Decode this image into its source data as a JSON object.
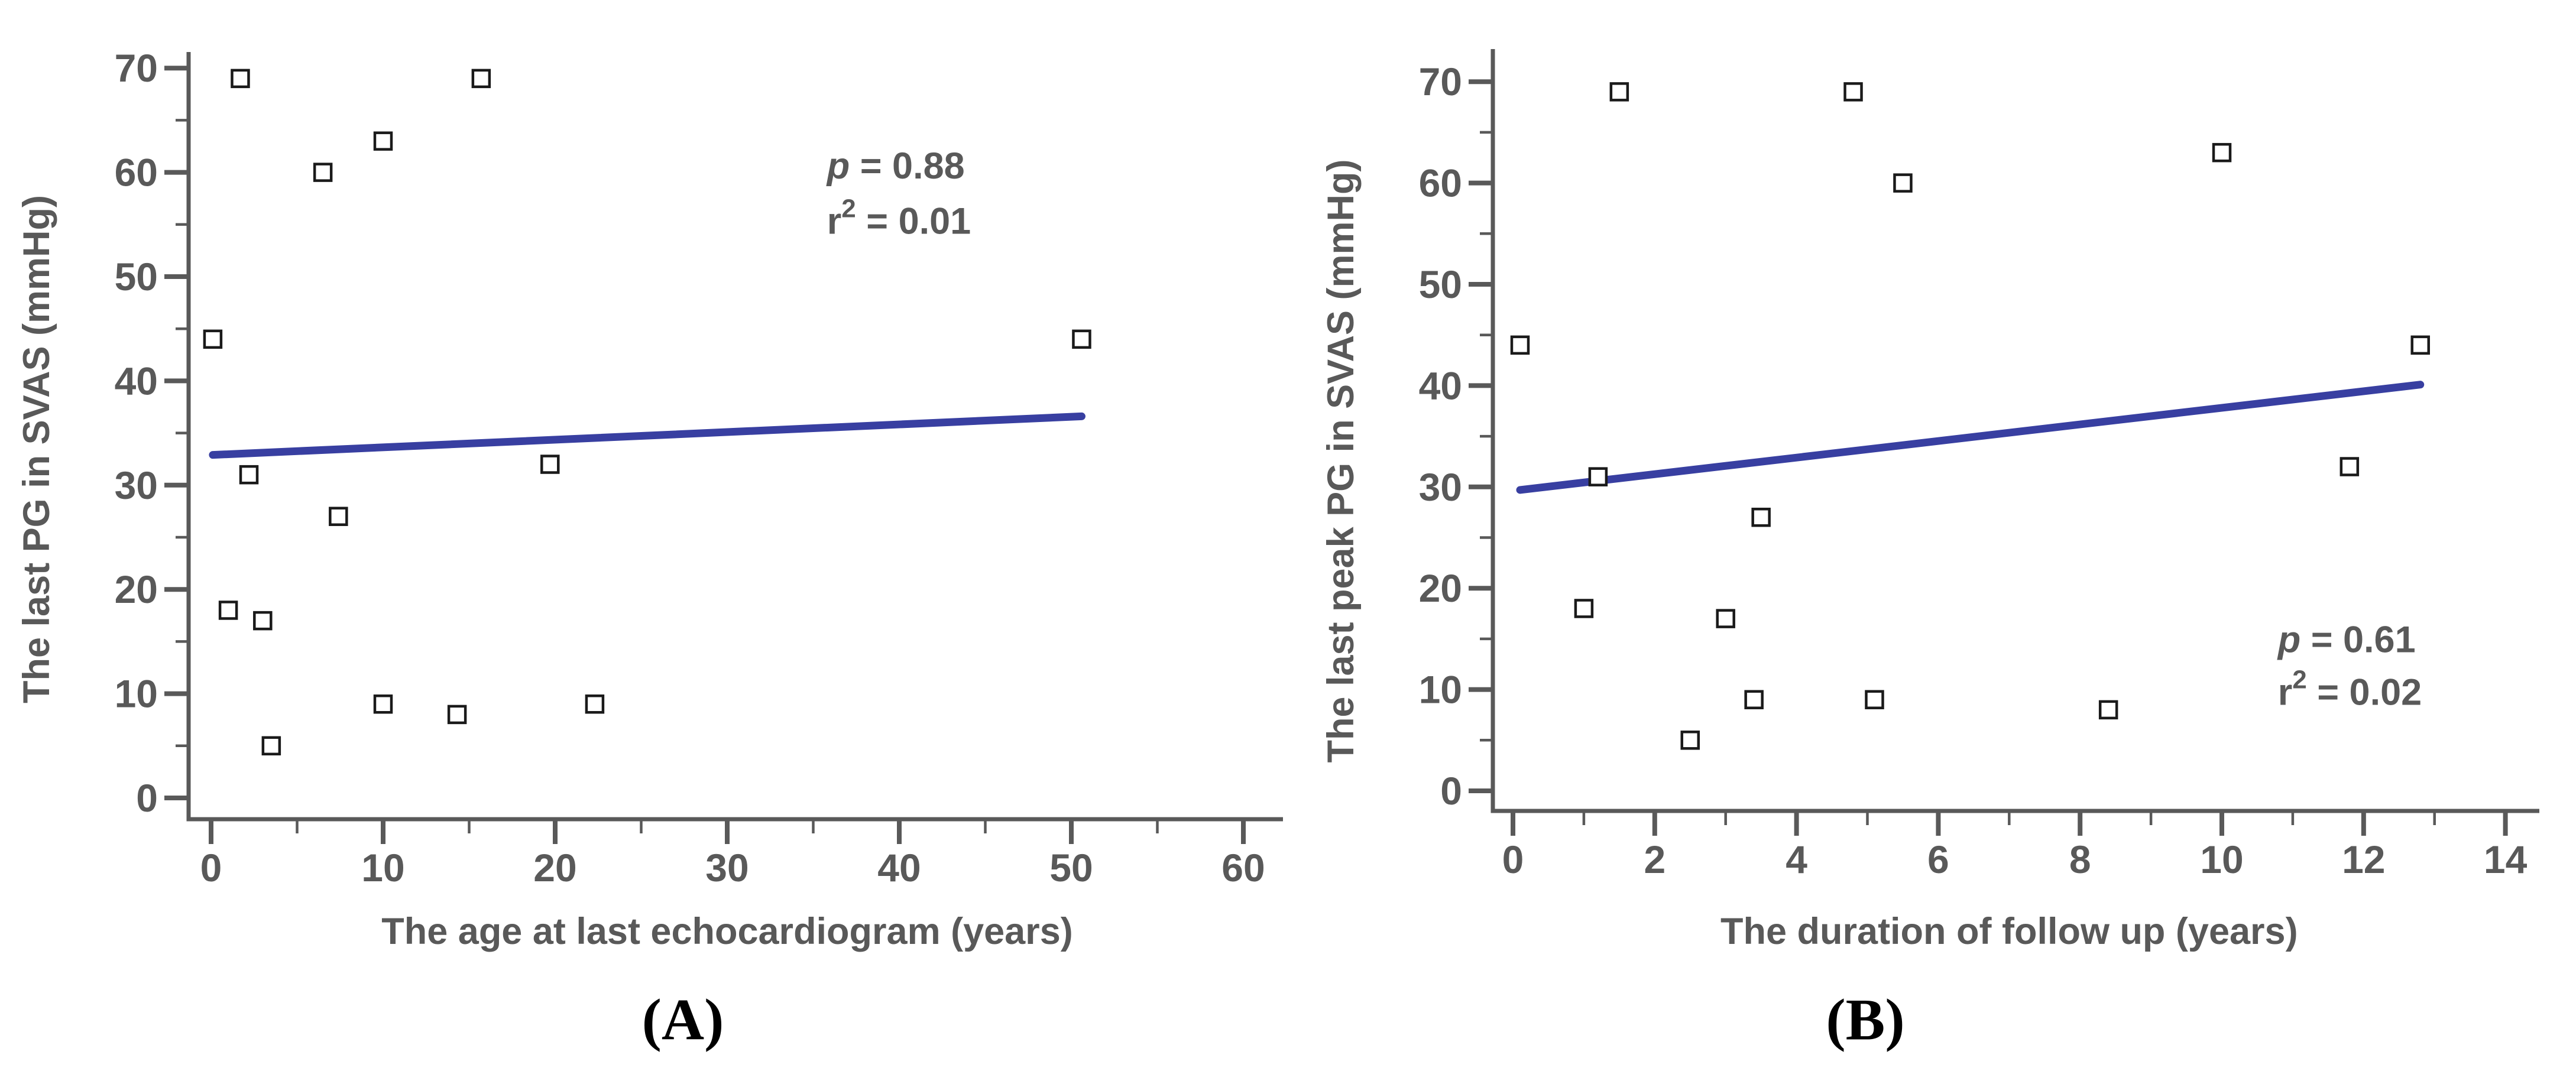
{
  "style": {
    "background": "#ffffff",
    "axis_color": "#595959",
    "label_color": "#595959",
    "marker_stroke": "#1a1a1a",
    "marker_fill": "#ffffff",
    "trend_color": "#383fa1",
    "caption_color": "#000000"
  },
  "chart_data": [
    {
      "id": "A",
      "type": "scatter",
      "caption": "(A)",
      "xlabel": "The age at last echocardiogram (years)",
      "ylabel": "The last PG in SVAS (mmHg)",
      "xlim": [
        0,
        60
      ],
      "ylim": [
        0,
        70
      ],
      "grid": false,
      "legend": null,
      "marker": "open-square",
      "x_major_ticks": [
        0,
        10,
        20,
        30,
        40,
        50,
        60
      ],
      "x_minor_ticks": [
        5,
        15,
        25,
        35,
        45,
        55
      ],
      "y_major_ticks": [
        0,
        10,
        20,
        30,
        40,
        50,
        60,
        70
      ],
      "y_minor_ticks": [
        5,
        15,
        25,
        35,
        45,
        55,
        65
      ],
      "points": [
        [
          0.1,
          44
        ],
        [
          1.7,
          69
        ],
        [
          1.0,
          18
        ],
        [
          2.2,
          31
        ],
        [
          3.0,
          17
        ],
        [
          3.5,
          5
        ],
        [
          6.5,
          60
        ],
        [
          7.4,
          27
        ],
        [
          10.0,
          63
        ],
        [
          10.0,
          9
        ],
        [
          14.3,
          8
        ],
        [
          15.7,
          69
        ],
        [
          19.7,
          32
        ],
        [
          22.3,
          9
        ],
        [
          50.6,
          44
        ]
      ],
      "trendline": {
        "x1": 0.1,
        "y1": 32.9,
        "x2": 50.6,
        "y2": 36.6
      },
      "annotation": {
        "p_var": "p",
        "p_rest": " = 0.88",
        "r_var": "r",
        "r_sup": "2",
        "r_rest": " = 0.01",
        "x": 35.8,
        "y_p": 60.6,
        "y_r2": 55.3
      }
    },
    {
      "id": "B",
      "type": "scatter",
      "caption": "(B)",
      "xlabel": "The duration of follow up (years)",
      "ylabel": "The last peak PG in SVAS (mmHg)",
      "xlim": [
        0,
        14
      ],
      "ylim": [
        0,
        70
      ],
      "grid": false,
      "legend": null,
      "marker": "open-square",
      "x_major_ticks": [
        0,
        2,
        4,
        6,
        8,
        10,
        12,
        14
      ],
      "x_minor_ticks": [
        1,
        3,
        5,
        7,
        9,
        11,
        13
      ],
      "y_major_ticks": [
        0,
        10,
        20,
        30,
        40,
        50,
        60,
        70
      ],
      "y_minor_ticks": [
        5,
        15,
        25,
        35,
        45,
        55,
        65
      ],
      "points": [
        [
          0.1,
          44
        ],
        [
          1.0,
          18
        ],
        [
          1.2,
          31
        ],
        [
          1.5,
          69
        ],
        [
          2.5,
          5
        ],
        [
          3.0,
          17
        ],
        [
          3.4,
          9
        ],
        [
          3.5,
          27
        ],
        [
          4.8,
          69
        ],
        [
          5.1,
          9
        ],
        [
          5.5,
          60
        ],
        [
          8.4,
          8
        ],
        [
          10.0,
          63
        ],
        [
          11.8,
          32
        ],
        [
          12.8,
          44
        ]
      ],
      "trendline": {
        "x1": 0.1,
        "y1": 29.7,
        "x2": 12.8,
        "y2": 40.1
      },
      "annotation": {
        "p_var": "p",
        "p_rest": " = 0.61",
        "r_var": "r",
        "r_sup": "2",
        "r_rest": " = 0.02",
        "x": 10.79,
        "y_p": 14.9,
        "y_r2": 9.7
      }
    }
  ]
}
